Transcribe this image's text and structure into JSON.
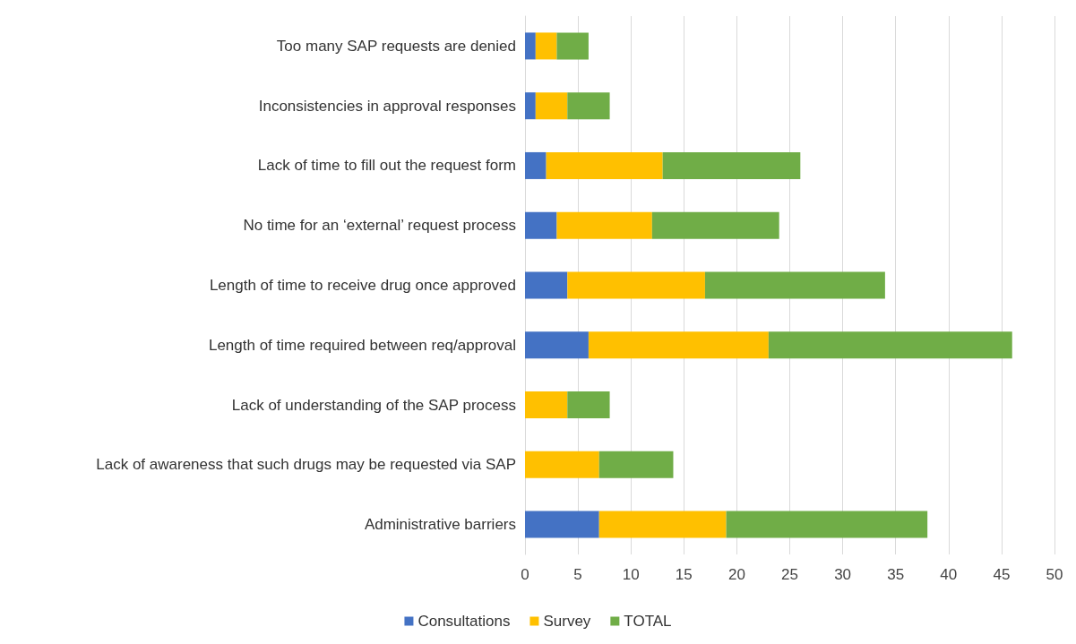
{
  "chart_data": {
    "type": "bar",
    "orientation": "horizontal",
    "stacked": true,
    "categories": [
      "Too many SAP requests are denied",
      "Inconsistencies in approval responses",
      "Lack of time to fill out the request form",
      "No time for an ‘external’ request process",
      "Length of time to receive drug once approved",
      "Length of time required between req/approval",
      "Lack of understanding of the SAP process",
      "Lack of awareness that such drugs may be requested via SAP",
      "Administrative barriers"
    ],
    "series": [
      {
        "name": "Consultations",
        "color": "#4472c4",
        "values": [
          1,
          1,
          2,
          3,
          4,
          6,
          0,
          0,
          7
        ]
      },
      {
        "name": "Survey",
        "color": "#ffc000",
        "values": [
          2,
          3,
          11,
          9,
          13,
          17,
          4,
          7,
          12
        ]
      },
      {
        "name": "TOTAL",
        "color": "#70ad47",
        "values": [
          3,
          4,
          13,
          12,
          17,
          23,
          4,
          7,
          19
        ]
      }
    ],
    "xlim": [
      0,
      50
    ],
    "xticks": [
      0,
      5,
      10,
      15,
      20,
      25,
      30,
      35,
      40,
      45,
      50
    ],
    "grid": "x",
    "legend": "bottom"
  }
}
